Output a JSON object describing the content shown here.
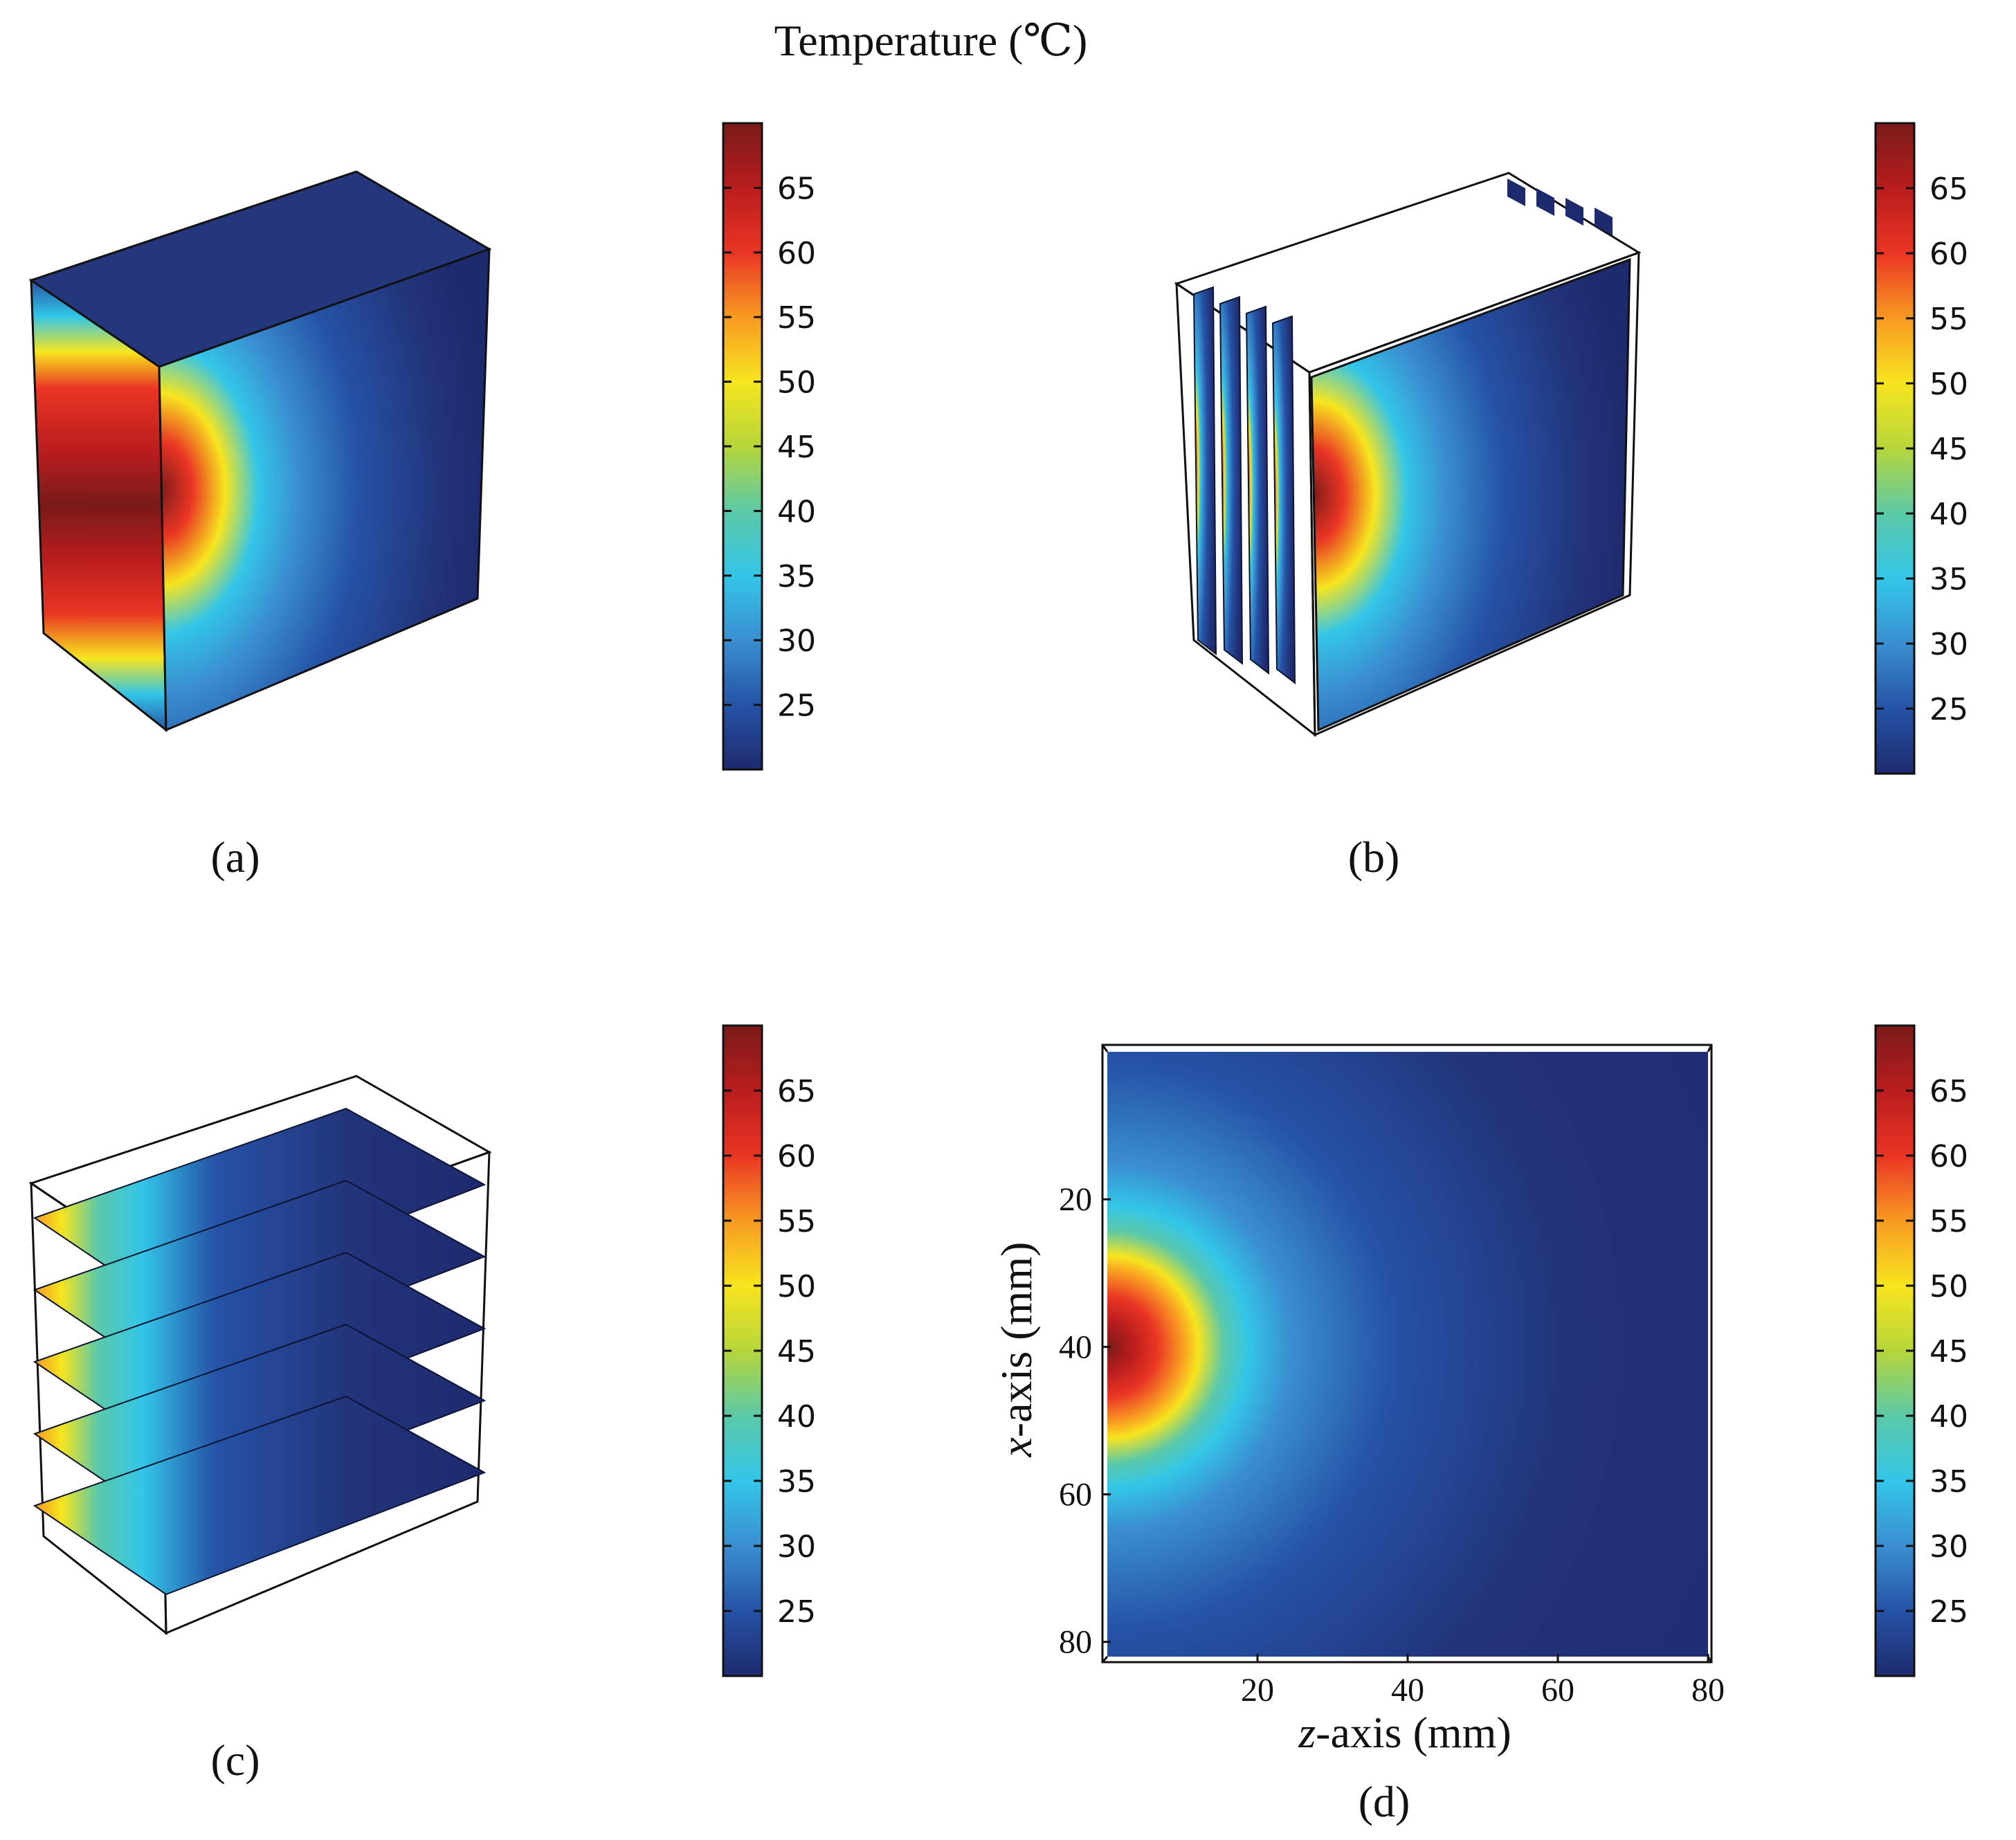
{
  "figure_title": "Temperature (℃)",
  "panel_labels": [
    "(a)",
    "(b)",
    "(c)",
    "(d)"
  ],
  "colormap": {
    "name": "jet",
    "stops": [
      "#1e2a6e",
      "#2553a6",
      "#3a8fd0",
      "#33c6e8",
      "#5cc9a8",
      "#b6d63a",
      "#f7e51e",
      "#f89a22",
      "#ea3524",
      "#b91d1d",
      "#7a1a1a"
    ]
  },
  "frame_color": "#111111",
  "chart_data": [
    {
      "panel": "(a)",
      "type": "heatmap",
      "description": "3D block, surface temperature",
      "colorbar": {
        "ticks": [
          25,
          30,
          35,
          40,
          45,
          50,
          55,
          60,
          65
        ],
        "range": [
          20,
          70
        ]
      }
    },
    {
      "panel": "(b)",
      "type": "heatmap",
      "description": "Vertical slices",
      "colorbar": {
        "ticks": [
          25,
          30,
          35,
          40,
          45,
          50,
          55,
          60,
          65
        ],
        "range": [
          20,
          70
        ]
      }
    },
    {
      "panel": "(c)",
      "type": "heatmap",
      "description": "Horizontal slices",
      "colorbar": {
        "ticks": [
          25,
          30,
          35,
          40,
          45,
          50,
          55,
          60,
          65
        ],
        "range": [
          20,
          70
        ]
      }
    },
    {
      "panel": "(d)",
      "type": "heatmap",
      "description": "2D cross-section, hot spot at z=0, x=40",
      "xlabel_var": "z",
      "xlabel_rest": "-axis (mm)",
      "ylabel_var": "x",
      "ylabel_rest": "-axis (mm)",
      "xticks": [
        20,
        40,
        60,
        80
      ],
      "yticks": [
        20,
        40,
        60,
        80
      ],
      "xlim": [
        0,
        80
      ],
      "ylim": [
        0,
        82
      ],
      "hotspot": {
        "z": 0,
        "x": 40,
        "peak": 69
      },
      "colorbar": {
        "ticks": [
          25,
          30,
          35,
          40,
          45,
          50,
          55,
          60,
          65
        ],
        "range": [
          20,
          70
        ]
      }
    }
  ]
}
